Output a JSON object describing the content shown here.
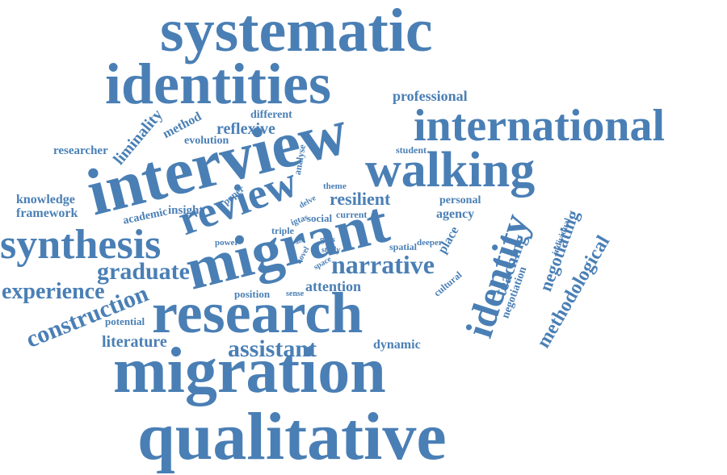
{
  "color": "#4a7fb5",
  "words": [
    "systematic",
    "identities",
    "interview",
    "international",
    "walking",
    "review",
    "migrant",
    "synthesis",
    "research",
    "migration",
    "qualitative",
    "identity",
    "narrative",
    "graduate",
    "experience",
    "construction",
    "assistant",
    "literature",
    "professional",
    "reflexive",
    "method",
    "evolution",
    "liminality",
    "different",
    "researcher",
    "knowledge",
    "framework",
    "academic",
    "insight",
    "paper",
    "resilient",
    "student",
    "analyse",
    "theme",
    "delve",
    "personal",
    "agency",
    "igtas",
    "social",
    "current",
    "triple",
    "place",
    "power",
    "gtas",
    "study",
    "spatial",
    "deeper",
    "novel",
    "space",
    "position",
    "sense",
    "attention",
    "cultural",
    "potential",
    "dynamic",
    "teaching",
    "negotiation",
    "negotiating",
    "individual",
    "methodological",
    "aim"
  ]
}
